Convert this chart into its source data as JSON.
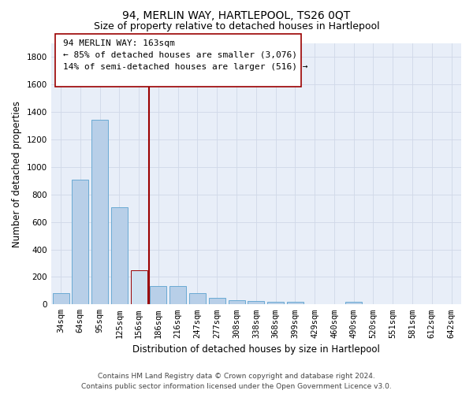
{
  "title": "94, MERLIN WAY, HARTLEPOOL, TS26 0QT",
  "subtitle": "Size of property relative to detached houses in Hartlepool",
  "xlabel": "Distribution of detached houses by size in Hartlepool",
  "ylabel": "Number of detached properties",
  "categories": [
    "34sqm",
    "64sqm",
    "95sqm",
    "125sqm",
    "156sqm",
    "186sqm",
    "216sqm",
    "247sqm",
    "277sqm",
    "308sqm",
    "338sqm",
    "368sqm",
    "399sqm",
    "429sqm",
    "460sqm",
    "490sqm",
    "520sqm",
    "551sqm",
    "581sqm",
    "612sqm",
    "642sqm"
  ],
  "values": [
    80,
    905,
    1345,
    710,
    250,
    135,
    135,
    80,
    50,
    28,
    25,
    18,
    18,
    0,
    0,
    18,
    0,
    0,
    0,
    0,
    0
  ],
  "bar_color": "#b8cfe8",
  "bar_edgecolor": "#6aaad4",
  "highlight_bar_index": 4,
  "highlight_bar_color": "#cfe0f0",
  "highlight_bar_edgecolor": "#9b0000",
  "vline_color": "#9b0000",
  "ylim": [
    0,
    1900
  ],
  "yticks": [
    0,
    200,
    400,
    600,
    800,
    1000,
    1200,
    1400,
    1600,
    1800
  ],
  "annotation_title": "94 MERLIN WAY: 163sqm",
  "annotation_line1": "← 85% of detached houses are smaller (3,076)",
  "annotation_line2": "14% of semi-detached houses are larger (516) →",
  "footer_line1": "Contains HM Land Registry data © Crown copyright and database right 2024.",
  "footer_line2": "Contains public sector information licensed under the Open Government Licence v3.0.",
  "grid_color": "#d0d8e8",
  "axes_bg_color": "#e8eef8",
  "background_color": "#ffffff",
  "title_fontsize": 10,
  "subtitle_fontsize": 9,
  "axis_label_fontsize": 8.5,
  "tick_fontsize": 7.5,
  "annotation_fontsize": 8,
  "footer_fontsize": 6.5
}
